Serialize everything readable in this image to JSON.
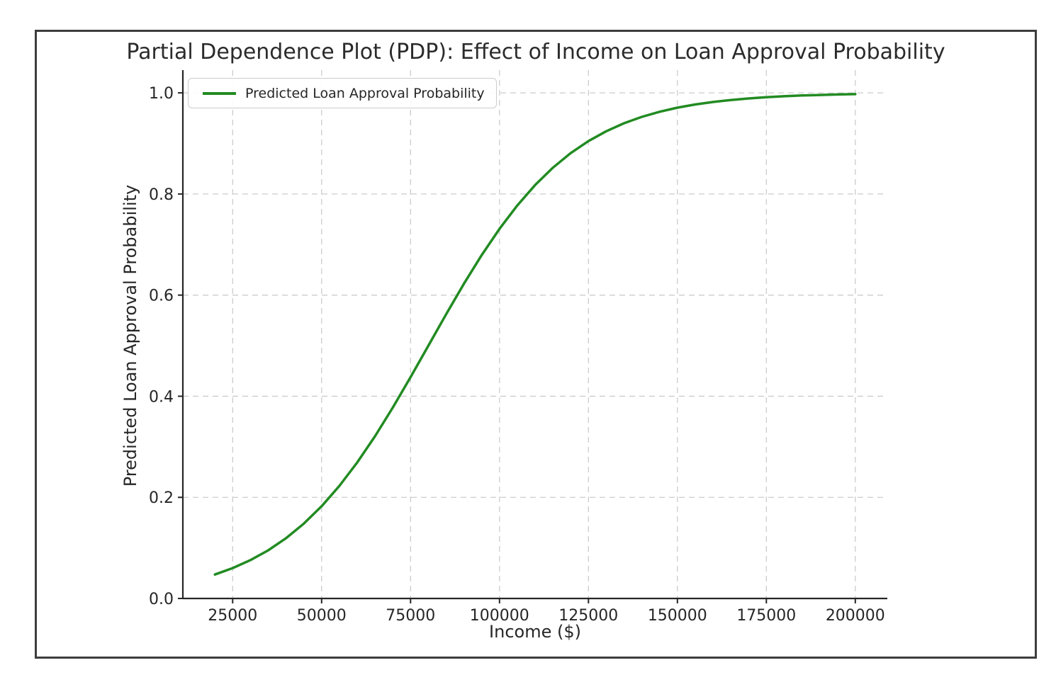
{
  "chart_data": {
    "type": "line",
    "title": "Partial Dependence Plot (PDP): Effect of Income on Loan Approval Probability",
    "xlabel": "Income ($)",
    "ylabel": "Predicted Loan Approval Probability",
    "legend_position": "upper left",
    "grid": true,
    "xlim": [
      11000,
      209000
    ],
    "ylim": [
      0,
      1.045
    ],
    "xticks": [
      25000,
      50000,
      75000,
      100000,
      125000,
      150000,
      175000,
      200000
    ],
    "yticks": [
      0.0,
      0.2,
      0.4,
      0.6,
      0.8,
      1.0
    ],
    "grid_color": "#cccccc",
    "axis_color": "#262626",
    "text_color": "#262626",
    "frame_color": "#3d3d3d",
    "series": [
      {
        "name": "Predicted Loan Approval Probability",
        "color": "#228B22",
        "x": [
          20000,
          25000,
          30000,
          35000,
          40000,
          45000,
          50000,
          55000,
          60000,
          65000,
          70000,
          75000,
          80000,
          85000,
          90000,
          95000,
          100000,
          105000,
          110000,
          115000,
          120000,
          125000,
          130000,
          135000,
          140000,
          145000,
          150000,
          155000,
          160000,
          165000,
          170000,
          175000,
          180000,
          185000,
          190000,
          195000,
          200000
        ],
        "y": [
          0.0474,
          0.0601,
          0.0759,
          0.0953,
          0.1192,
          0.148,
          0.1824,
          0.2227,
          0.2689,
          0.3208,
          0.3775,
          0.4378,
          0.5,
          0.5622,
          0.6225,
          0.6792,
          0.7311,
          0.7773,
          0.8176,
          0.852,
          0.8808,
          0.9047,
          0.9241,
          0.9399,
          0.9526,
          0.9626,
          0.9707,
          0.977,
          0.982,
          0.9859,
          0.989,
          0.9914,
          0.9933,
          0.9948,
          0.9959,
          0.9968,
          0.9975
        ]
      }
    ]
  }
}
